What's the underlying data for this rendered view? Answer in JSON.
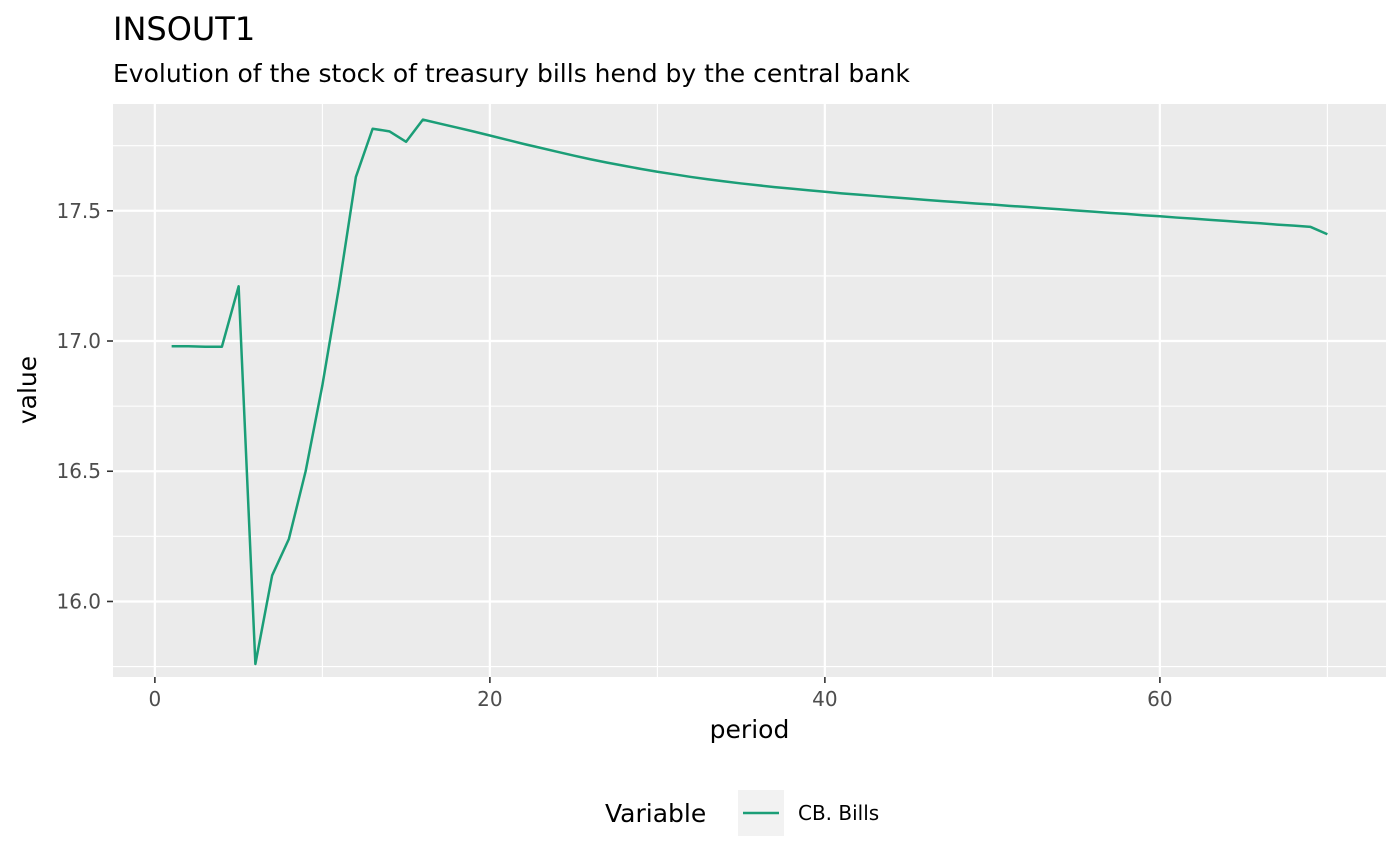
{
  "chart_data": {
    "type": "line",
    "title": "INSOUT1",
    "subtitle": "Evolution of the stock of treasury bills hend by the central bank",
    "xlabel": "period",
    "ylabel": "value",
    "xlim": [
      -2.5,
      73.5
    ],
    "ylim": [
      15.71,
      17.91
    ],
    "x_ticks": [
      0,
      20,
      40,
      60
    ],
    "x_tick_labels": [
      "0",
      "20",
      "40",
      "60"
    ],
    "x_minor_ticks": [
      10,
      30,
      50,
      70
    ],
    "y_ticks": [
      16.0,
      16.5,
      17.0,
      17.5
    ],
    "y_tick_labels": [
      "16.0",
      "16.5",
      "17.0",
      "17.5"
    ],
    "y_minor_ticks": [
      15.75,
      16.25,
      16.75,
      17.25,
      17.75
    ],
    "grid": true,
    "legend": {
      "title": "Variable",
      "position": "bottom",
      "entries": [
        {
          "label": "CB. Bills",
          "color": "#1b9e77"
        }
      ]
    },
    "series": [
      {
        "name": "CB. Bills",
        "color": "#1b9e77",
        "x": [
          1,
          2,
          3,
          4,
          5,
          6,
          7,
          8,
          9,
          10,
          11,
          12,
          13,
          14,
          15,
          16,
          17,
          18,
          19,
          20,
          21,
          22,
          23,
          24,
          25,
          26,
          27,
          28,
          29,
          30,
          31,
          32,
          33,
          34,
          35,
          36,
          37,
          38,
          39,
          40,
          41,
          42,
          43,
          44,
          45,
          46,
          47,
          48,
          49,
          50,
          51,
          52,
          53,
          54,
          55,
          56,
          57,
          58,
          59,
          60,
          61,
          62,
          63,
          64,
          65,
          66,
          67,
          68,
          69,
          70
        ],
        "values": [
          16.98,
          16.98,
          16.978,
          16.978,
          17.21,
          15.76,
          16.1,
          16.24,
          16.5,
          16.83,
          17.21,
          17.63,
          17.815,
          17.805,
          17.765,
          17.85,
          17.835,
          17.82,
          17.805,
          17.789,
          17.773,
          17.757,
          17.742,
          17.727,
          17.712,
          17.698,
          17.685,
          17.673,
          17.661,
          17.65,
          17.64,
          17.63,
          17.621,
          17.613,
          17.605,
          17.598,
          17.591,
          17.585,
          17.579,
          17.573,
          17.567,
          17.562,
          17.557,
          17.552,
          17.547,
          17.542,
          17.537,
          17.533,
          17.528,
          17.524,
          17.519,
          17.515,
          17.51,
          17.506,
          17.501,
          17.497,
          17.492,
          17.488,
          17.483,
          17.479,
          17.474,
          17.47,
          17.465,
          17.461,
          17.456,
          17.452,
          17.447,
          17.443,
          17.438,
          17.41
        ]
      }
    ]
  }
}
